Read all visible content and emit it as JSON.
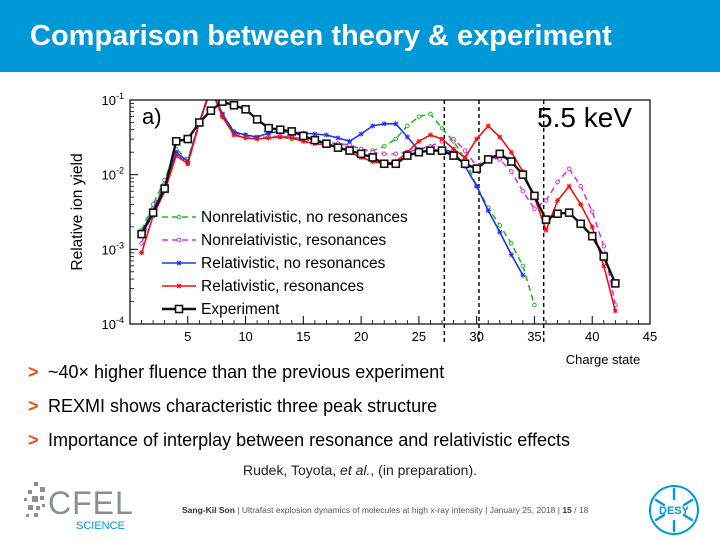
{
  "slide": {
    "title": "Comparison between theory & experiment",
    "bullets": [
      "~40× higher fluence than the previous experiment",
      "REXMI shows characteristic three peak structure",
      "Importance of interplay between resonance and relativistic effects"
    ],
    "bullet_marker": ">",
    "citation": {
      "authors": "Rudek, Toyota,",
      "etal": "et al.",
      "rest": ", (in preparation)."
    },
    "footer": {
      "author": "Sang-Kil Son",
      "text": " | Ultrafast explosion dynamics of molecules at high x-ray intensity | January 25, 2018 | ",
      "page": "15",
      "total": " / 18"
    },
    "logos": {
      "cfel_name": "CFEL",
      "cfel_sub": "SCIENCE",
      "desy": "DESY"
    },
    "colors": {
      "title_bg": "#0099d8",
      "bullet_arrow": "#e8501f"
    }
  },
  "chart_data": {
    "type": "line",
    "panel_label": "a)",
    "energy_label": "5.5 keV",
    "xlabel": "Charge state",
    "ylabel": "Relative ion yield",
    "xlim": [
      0,
      45
    ],
    "ylim_log10": [
      -4,
      -1
    ],
    "y_scale": "log",
    "xticks": [
      5,
      10,
      15,
      20,
      25,
      30,
      35,
      40,
      45
    ],
    "yticks": [
      {
        "base": "10",
        "exp": "-1",
        "value": 0.1
      },
      {
        "base": "10",
        "exp": "-2",
        "value": 0.01
      },
      {
        "base": "10",
        "exp": "-3",
        "value": 0.001
      },
      {
        "base": "10",
        "exp": "-4",
        "value": 0.0001
      }
    ],
    "vlines": [
      27.2,
      30.2,
      35.8
    ],
    "legend_position": "lower-left",
    "series": [
      {
        "name": "Nonrelativistic, no resonances",
        "color": "#22bb22",
        "dash": "6,4",
        "marker": "circle",
        "x": [
          1,
          2,
          3,
          4,
          5,
          6,
          7,
          8,
          9,
          10,
          11,
          12,
          13,
          14,
          15,
          16,
          17,
          18,
          19,
          20,
          21,
          22,
          23,
          24,
          25,
          26,
          27,
          28,
          29,
          30,
          31,
          32,
          33,
          34,
          35
        ],
        "y": [
          0.0018,
          0.004,
          0.0085,
          0.022,
          0.016,
          0.05,
          0.15,
          0.065,
          0.038,
          0.034,
          0.031,
          0.032,
          0.032,
          0.03,
          0.03,
          0.028,
          0.027,
          0.026,
          0.025,
          0.022,
          0.021,
          0.024,
          0.03,
          0.045,
          0.06,
          0.065,
          0.042,
          0.028,
          0.016,
          0.007,
          0.0036,
          0.0021,
          0.0012,
          0.0006,
          0.00018
        ]
      },
      {
        "name": "Nonrelativistic, resonances",
        "color": "#dd33dd",
        "dash": "6,4",
        "marker": "circle",
        "x": [
          1,
          2,
          3,
          4,
          5,
          6,
          7,
          8,
          9,
          10,
          11,
          12,
          13,
          14,
          15,
          16,
          17,
          18,
          19,
          20,
          21,
          22,
          23,
          24,
          25,
          26,
          27,
          28,
          29,
          30,
          31,
          32,
          33,
          34,
          35,
          36,
          37,
          38,
          39,
          40,
          41,
          42
        ],
        "y": [
          0.0012,
          0.0035,
          0.0075,
          0.019,
          0.014,
          0.048,
          0.14,
          0.06,
          0.035,
          0.033,
          0.031,
          0.032,
          0.033,
          0.032,
          0.03,
          0.028,
          0.027,
          0.026,
          0.025,
          0.022,
          0.02,
          0.019,
          0.019,
          0.02,
          0.022,
          0.024,
          0.028,
          0.03,
          0.021,
          0.013,
          0.017,
          0.016,
          0.011,
          0.006,
          0.0035,
          0.0045,
          0.008,
          0.012,
          0.007,
          0.0032,
          0.0011,
          0.00018
        ]
      },
      {
        "name": "Relativistic, no resonances",
        "color": "#2233ee",
        "dash": "",
        "marker": "star",
        "x": [
          1,
          2,
          3,
          4,
          5,
          6,
          7,
          8,
          9,
          10,
          11,
          12,
          13,
          14,
          15,
          16,
          17,
          18,
          19,
          20,
          21,
          22,
          23,
          24,
          25,
          26,
          27,
          28,
          29,
          30,
          31,
          32,
          33,
          34
        ],
        "y": [
          0.0017,
          0.0033,
          0.007,
          0.02,
          0.015,
          0.05,
          0.14,
          0.065,
          0.037,
          0.034,
          0.032,
          0.036,
          0.038,
          0.037,
          0.036,
          0.035,
          0.034,
          0.031,
          0.028,
          0.035,
          0.045,
          0.048,
          0.048,
          0.032,
          0.021,
          0.02,
          0.022,
          0.02,
          0.013,
          0.007,
          0.0033,
          0.0017,
          0.00085,
          0.00045
        ]
      },
      {
        "name": "Relativistic, resonances",
        "color": "#ee1111",
        "dash": "",
        "marker": "star",
        "x": [
          1,
          2,
          3,
          4,
          5,
          6,
          7,
          8,
          9,
          10,
          11,
          12,
          13,
          14,
          15,
          16,
          17,
          18,
          19,
          20,
          21,
          22,
          23,
          24,
          25,
          26,
          27,
          28,
          29,
          30,
          31,
          32,
          33,
          34,
          35,
          36,
          37,
          38,
          39,
          40,
          41,
          42
        ],
        "y": [
          0.0009,
          0.0028,
          0.006,
          0.018,
          0.014,
          0.05,
          0.15,
          0.06,
          0.034,
          0.031,
          0.03,
          0.031,
          0.032,
          0.031,
          0.028,
          0.026,
          0.025,
          0.024,
          0.02,
          0.017,
          0.015,
          0.014,
          0.015,
          0.02,
          0.028,
          0.034,
          0.03,
          0.022,
          0.017,
          0.03,
          0.045,
          0.032,
          0.02,
          0.011,
          0.005,
          0.0018,
          0.0045,
          0.007,
          0.004,
          0.002,
          0.0006,
          0.00015
        ]
      },
      {
        "name": "Experiment",
        "color": "#111111",
        "dash": "",
        "marker": "square",
        "x": [
          1,
          2,
          3,
          4,
          5,
          6,
          7,
          8,
          9,
          10,
          11,
          12,
          13,
          14,
          15,
          16,
          17,
          18,
          19,
          20,
          21,
          22,
          23,
          24,
          25,
          26,
          27,
          28,
          29,
          30,
          31,
          32,
          33,
          34,
          35,
          36,
          37,
          38,
          39,
          40,
          41,
          42
        ],
        "y": [
          0.0016,
          0.0031,
          0.0065,
          0.028,
          0.03,
          0.05,
          0.072,
          0.095,
          0.085,
          0.075,
          0.055,
          0.042,
          0.04,
          0.038,
          0.033,
          0.029,
          0.026,
          0.023,
          0.021,
          0.019,
          0.017,
          0.014,
          0.014,
          0.018,
          0.02,
          0.021,
          0.021,
          0.018,
          0.014,
          0.012,
          0.016,
          0.019,
          0.015,
          0.01,
          0.0052,
          0.0025,
          0.003,
          0.0031,
          0.0022,
          0.0015,
          0.0008,
          0.00035
        ]
      }
    ]
  }
}
